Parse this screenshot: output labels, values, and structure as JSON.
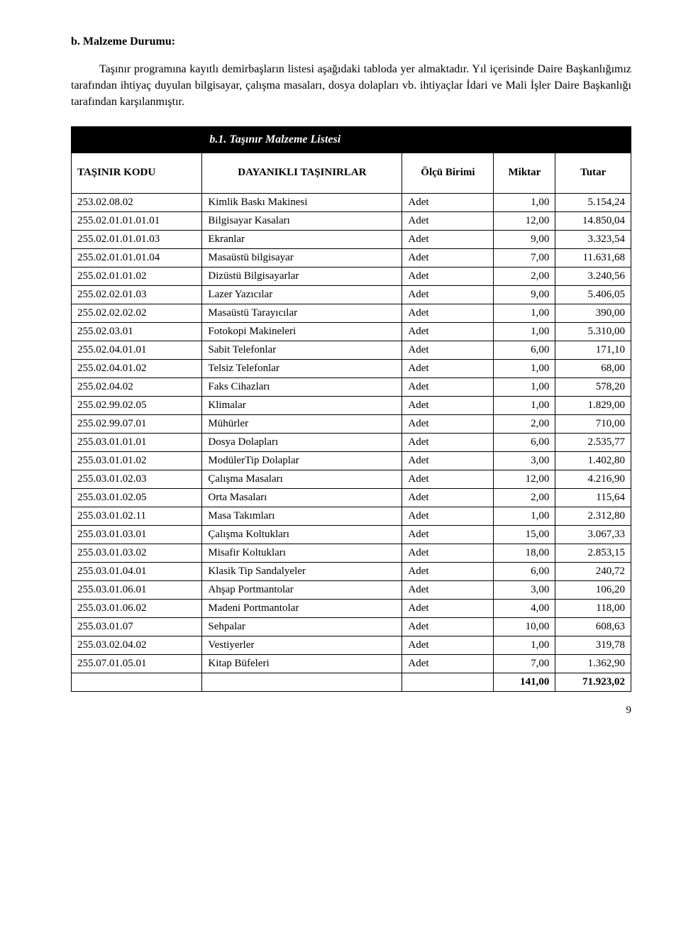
{
  "heading": "b. Malzeme Durumu:",
  "intro": "Taşınır programına kayıtlı demirbaşların listesi aşağıdaki tabloda yer almaktadır. Yıl içerisinde Daire Başkanlığımız tarafından ihtiyaç duyulan bilgisayar, çalışma masaları, dosya dolapları vb. ihtiyaçlar İdari ve Mali İşler Daire Başkanlığı tarafından karşılanmıştır.",
  "table": {
    "title": "b.1. Taşınır Malzeme Listesi",
    "columns": {
      "code": "TAŞINIR KODU",
      "name": "DAYANIKLI TAŞINIRLAR",
      "unit": "Ölçü Birimi",
      "qty": "Miktar",
      "amount": "Tutar"
    },
    "rows": [
      {
        "code": "253.02.08.02",
        "name": "Kimlik Baskı Makinesi",
        "unit": "Adet",
        "qty": "1,00",
        "amt": "5.154,24"
      },
      {
        "code": "255.02.01.01.01.01",
        "name": "Bilgisayar Kasaları",
        "unit": "Adet",
        "qty": "12,00",
        "amt": "14.850,04"
      },
      {
        "code": "255.02.01.01.01.03",
        "name": "Ekranlar",
        "unit": "Adet",
        "qty": "9,00",
        "amt": "3.323,54"
      },
      {
        "code": "255.02.01.01.01.04",
        "name": "Masaüstü bilgisayar",
        "unit": "Adet",
        "qty": "7,00",
        "amt": "11.631,68"
      },
      {
        "code": "255.02.01.01.02",
        "name": "Dizüstü Bilgisayarlar",
        "unit": "Adet",
        "qty": "2,00",
        "amt": "3.240,56"
      },
      {
        "code": "255.02.02.01.03",
        "name": "Lazer Yazıcılar",
        "unit": "Adet",
        "qty": "9,00",
        "amt": "5.406,05"
      },
      {
        "code": "255.02.02.02.02",
        "name": "Masaüstü Tarayıcılar",
        "unit": "Adet",
        "qty": "1,00",
        "amt": "390,00"
      },
      {
        "code": "255.02.03.01",
        "name": "Fotokopi Makineleri",
        "unit": "Adet",
        "qty": "1,00",
        "amt": "5.310,00"
      },
      {
        "code": "255.02.04.01.01",
        "name": "Sabit Telefonlar",
        "unit": "Adet",
        "qty": "6,00",
        "amt": "171,10"
      },
      {
        "code": "255.02.04.01.02",
        "name": "Telsiz Telefonlar",
        "unit": "Adet",
        "qty": "1,00",
        "amt": "68,00"
      },
      {
        "code": "255.02.04.02",
        "name": "Faks Cihazları",
        "unit": "Adet",
        "qty": "1,00",
        "amt": "578,20"
      },
      {
        "code": "255.02.99.02.05",
        "name": "Klimalar",
        "unit": "Adet",
        "qty": "1,00",
        "amt": "1.829,00"
      },
      {
        "code": "255.02.99.07.01",
        "name": "Mühürler",
        "unit": "Adet",
        "qty": "2,00",
        "amt": "710,00"
      },
      {
        "code": "255.03.01.01.01",
        "name": "Dosya Dolapları",
        "unit": "Adet",
        "qty": "6,00",
        "amt": "2.535,77"
      },
      {
        "code": "255.03.01.01.02",
        "name": "ModülerTip Dolaplar",
        "unit": "Adet",
        "qty": "3,00",
        "amt": "1.402,80"
      },
      {
        "code": "255.03.01.02.03",
        "name": "Çalışma Masaları",
        "unit": "Adet",
        "qty": "12,00",
        "amt": "4.216,90"
      },
      {
        "code": "255.03.01.02.05",
        "name": "Orta Masaları",
        "unit": "Adet",
        "qty": "2,00",
        "amt": "115,64"
      },
      {
        "code": "255.03.01.02.11",
        "name": "Masa Takımları",
        "unit": "Adet",
        "qty": "1,00",
        "amt": "2.312,80"
      },
      {
        "code": "255.03.01.03.01",
        "name": "Çalışma Koltukları",
        "unit": "Adet",
        "qty": "15,00",
        "amt": "3.067,33"
      },
      {
        "code": "255.03.01.03.02",
        "name": "Misafir Koltukları",
        "unit": "Adet",
        "qty": "18,00",
        "amt": "2.853,15"
      },
      {
        "code": "255.03.01.04.01",
        "name": "Klasik Tip Sandalyeler",
        "unit": "Adet",
        "qty": "6,00",
        "amt": "240,72"
      },
      {
        "code": "255.03.01.06.01",
        "name": "Ahşap Portmantolar",
        "unit": "Adet",
        "qty": "3,00",
        "amt": "106,20"
      },
      {
        "code": "255.03.01.06.02",
        "name": "Madeni Portmantolar",
        "unit": "Adet",
        "qty": "4,00",
        "amt": "118,00"
      },
      {
        "code": "255.03.01.07",
        "name": "Sehpalar",
        "unit": "Adet",
        "qty": "10,00",
        "amt": "608,63"
      },
      {
        "code": "255.03.02.04.02",
        "name": "Vestiyerler",
        "unit": "Adet",
        "qty": "1,00",
        "amt": "319,78"
      },
      {
        "code": "255.07.01.05.01",
        "name": "Kitap Büfeleri",
        "unit": "Adet",
        "qty": "7,00",
        "amt": "1.362,90"
      }
    ],
    "total": {
      "qty": "141,00",
      "amt": "71.923,02"
    }
  },
  "pagenum": "9"
}
